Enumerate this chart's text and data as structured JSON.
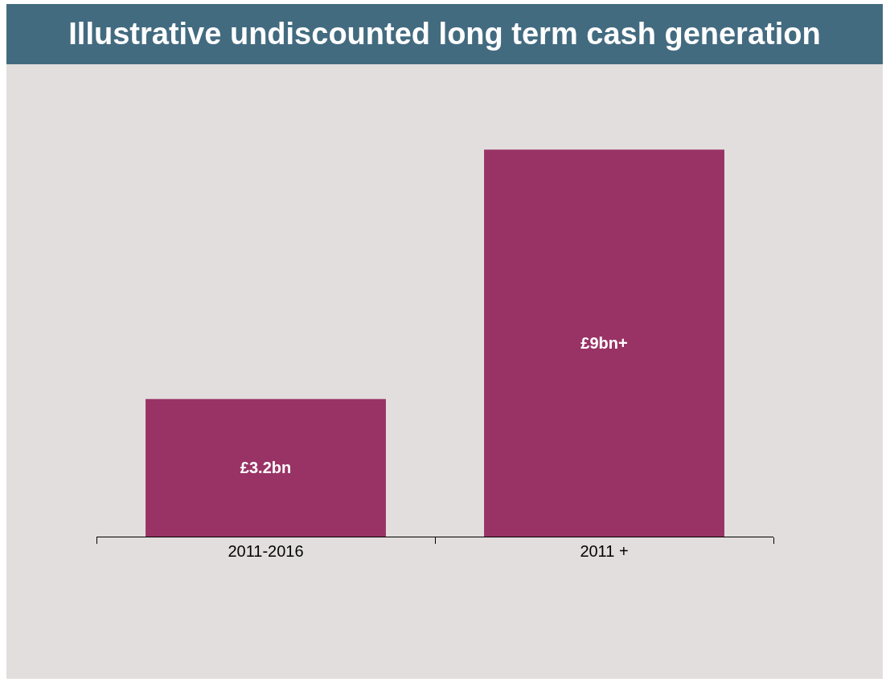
{
  "chart_data": {
    "type": "bar",
    "title": "Illustrative undiscounted long term cash generation",
    "categories": [
      "2011-2016",
      "2011 +"
    ],
    "values": [
      3.2,
      9
    ],
    "value_labels": [
      "£3.2bn",
      "£9bn+"
    ],
    "color": "#993366",
    "tick_labels": "x"
  }
}
